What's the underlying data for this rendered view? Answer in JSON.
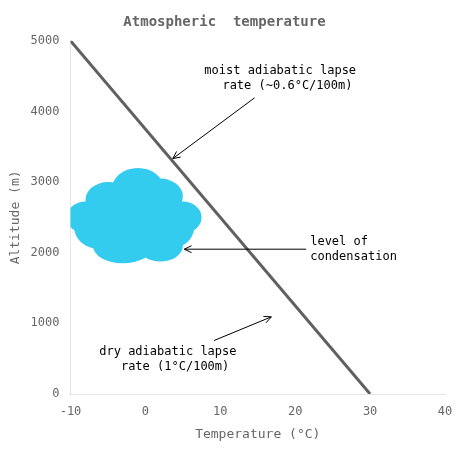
{
  "chart_data": {
    "type": "line",
    "title": "Atmospheric  temperature",
    "xlabel": "Temperature (°C)",
    "ylabel": "Altitude (m)",
    "xlim": [
      -10,
      40
    ],
    "ylim": [
      0,
      5000
    ],
    "xticks": [
      -10,
      0,
      10,
      20,
      30,
      40
    ],
    "yticks": [
      0,
      1000,
      2000,
      3000,
      4000,
      5000
    ],
    "grid": false,
    "x": [
      -10,
      30
    ],
    "values": [
      5000,
      0
    ],
    "color": "#606060",
    "cloud": {
      "color": "#33CCEE",
      "ellipses": [
        [
          -2,
          2400,
          10,
          700
        ],
        [
          -6,
          2350,
          7,
          600
        ],
        [
          3,
          2350,
          7,
          600
        ],
        [
          -1,
          2900,
          7,
          600
        ],
        [
          -5,
          2750,
          6,
          500
        ],
        [
          2,
          2800,
          6,
          500
        ],
        [
          -8,
          2500,
          5,
          450
        ],
        [
          5,
          2500,
          5,
          450
        ],
        [
          -3,
          2100,
          8,
          500
        ],
        [
          2,
          2100,
          6,
          450
        ]
      ]
    },
    "annotations": [
      {
        "text": "moist adiabatic lapse\n  rate (~0.6°C/100m)",
        "xy": [
          3.5,
          3320
        ],
        "xytext": [
          18,
          4250
        ]
      },
      {
        "text": "dry adiabatic lapse\n  rate (1°C/100m)",
        "xy": [
          17,
          1100
        ],
        "xytext": [
          3,
          700
        ]
      },
      {
        "text": "level of\ncondensation",
        "xy": [
          5,
          2050
        ],
        "xytext": [
          22,
          2050
        ]
      }
    ]
  }
}
